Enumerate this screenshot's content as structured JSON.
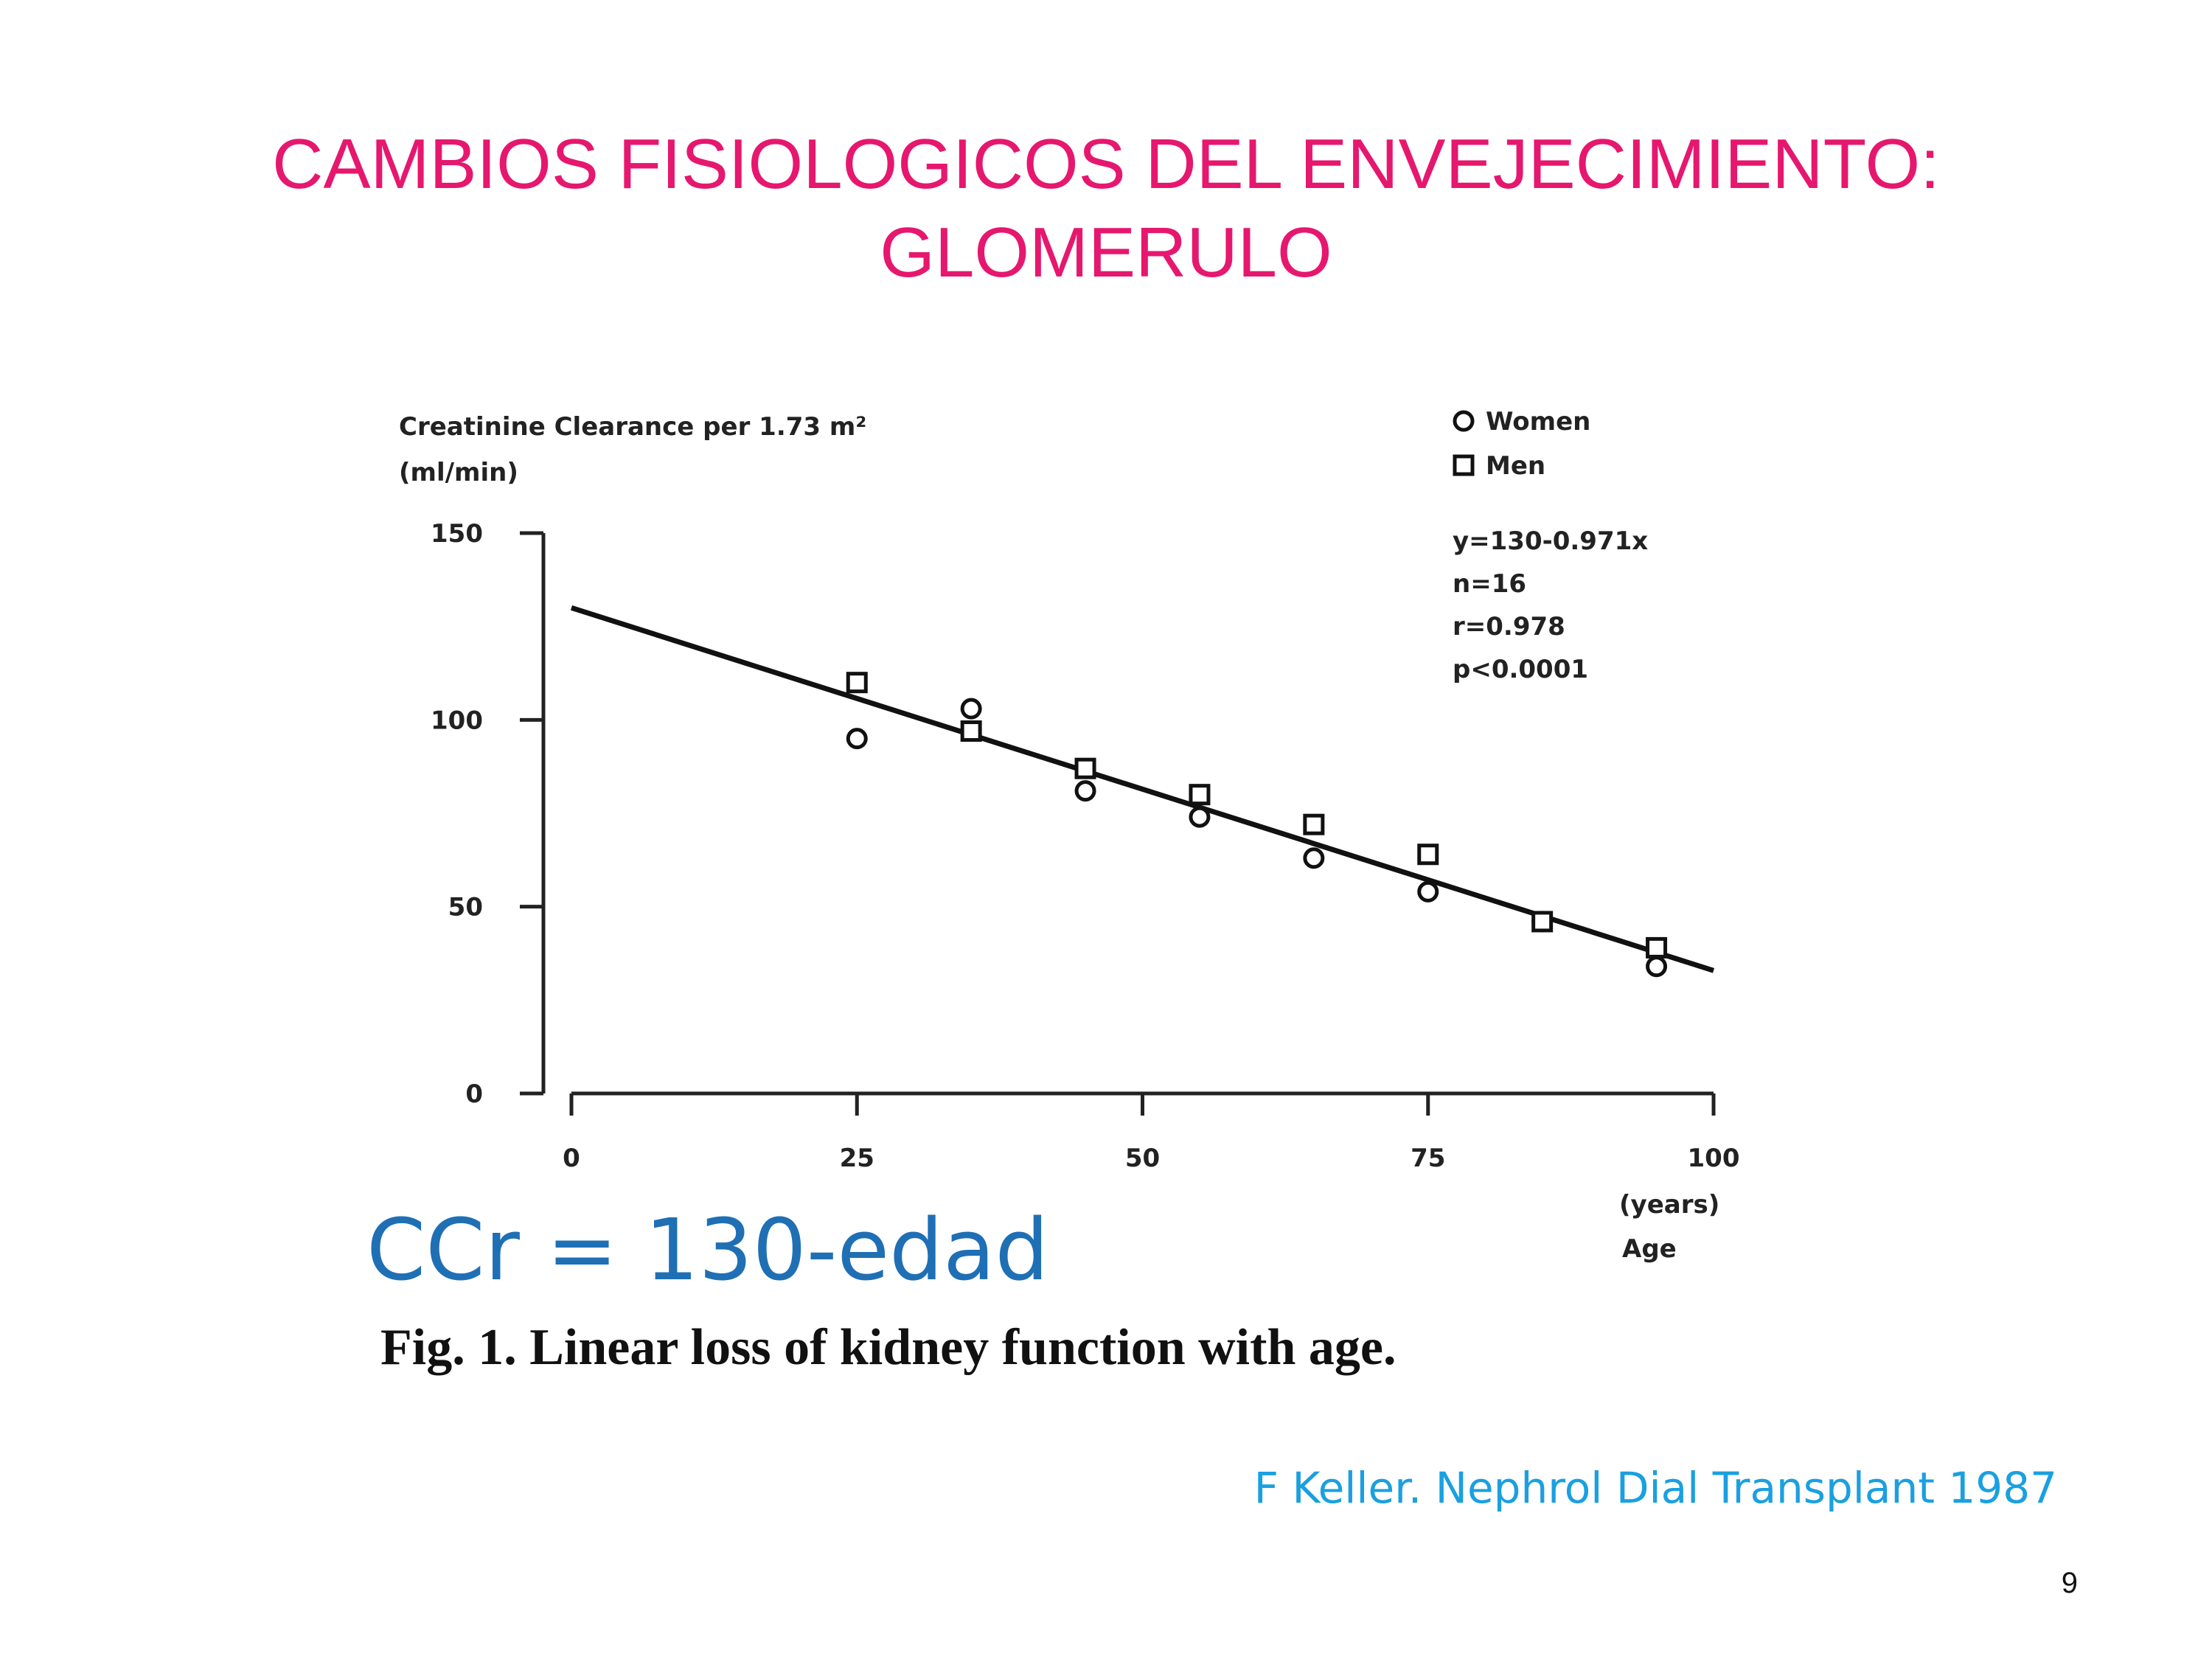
{
  "title": [
    "CAMBIOS FISIOLOGICOS DEL ENVEJECIMIENTO:",
    "GLOMERULO"
  ],
  "formula": "CCr = 130-edad",
  "caption": "Fig. 1. Linear loss of kidney function with age.",
  "citation": "F Keller. Nephrol Dial Transplant 1987",
  "page_number": "9",
  "chart_data": {
    "type": "scatter",
    "ylabel": [
      "Creatinine Clearance per 1.73 m²",
      "(ml/min)"
    ],
    "xlabel": [
      "(years)",
      "Age"
    ],
    "xlim": [
      0,
      100
    ],
    "ylim": [
      0,
      150
    ],
    "xticks": [
      0,
      25,
      50,
      75,
      100
    ],
    "yticks": [
      0,
      50,
      100,
      150
    ],
    "series": [
      {
        "name": "Women",
        "marker": "circle",
        "color": "#111111",
        "x": [
          25,
          35,
          45,
          55,
          65,
          75,
          85,
          95
        ],
        "values": [
          95,
          103,
          81,
          74,
          63,
          54,
          46,
          34
        ]
      },
      {
        "name": "Men",
        "marker": "square",
        "color": "#111111",
        "x": [
          25,
          35,
          45,
          55,
          65,
          75,
          85,
          95
        ],
        "values": [
          110,
          97,
          87,
          80,
          72,
          64,
          46,
          39
        ]
      }
    ],
    "fit": {
      "x": [
        0,
        100
      ],
      "values": [
        130,
        32.9
      ],
      "color": "#111111"
    },
    "annotations": [
      "y=130-0.971x",
      "n=16",
      "r=0.978",
      "p<0.0001"
    ]
  }
}
